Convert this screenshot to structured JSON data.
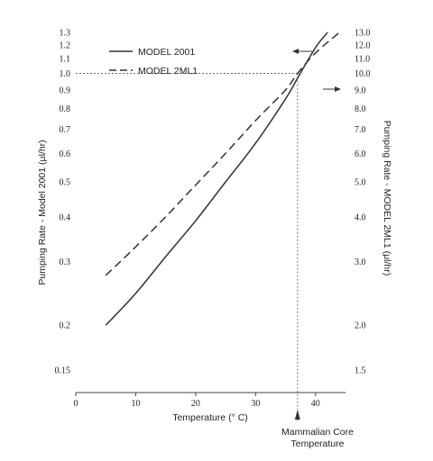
{
  "chart_data": {
    "type": "line",
    "xlabel": "Temperature (° C)",
    "ylabel_left": "Pumping Rate - Model 2001 (μl/hr)",
    "ylabel_right": "Pumping Rate - MODEL 2ML1 (μl/hr)",
    "xlim": [
      0,
      45
    ],
    "ylim_left": [
      0.13,
      1.3
    ],
    "ylim_right": [
      1.3,
      13.0
    ],
    "y_scale": "log",
    "grid": false,
    "legend": "top-left",
    "x_ticks": [
      "0",
      "10",
      "20",
      "30",
      "40"
    ],
    "x_tick_values": [
      0,
      10,
      20,
      30,
      40
    ],
    "left_ticks": [
      "1.3",
      "1.2",
      "1.1",
      "1.0",
      "0.9",
      "0.8",
      "0.7",
      "0.6",
      "0.5",
      "0.4",
      "0.3",
      "0.2",
      "0.15"
    ],
    "left_tick_values": [
      1.3,
      1.2,
      1.1,
      1.0,
      0.9,
      0.8,
      0.7,
      0.6,
      0.5,
      0.4,
      0.3,
      0.2,
      0.15
    ],
    "right_ticks": [
      "13.0",
      "12.0",
      "11.0",
      "10.0",
      "9.0",
      "8.0",
      "7.0",
      "6.0",
      "5.0",
      "4.0",
      "3.0",
      "2.0",
      "1.5"
    ],
    "right_tick_values": [
      13.0,
      12.0,
      11.0,
      10.0,
      9.0,
      8.0,
      7.0,
      6.0,
      5.0,
      4.0,
      3.0,
      2.0,
      1.5
    ],
    "series": [
      {
        "name": "MODEL 2001",
        "style": "solid",
        "x": [
          5,
          10,
          15,
          20,
          25,
          30,
          35,
          37,
          40,
          42
        ],
        "y": [
          0.2,
          0.245,
          0.31,
          0.39,
          0.5,
          0.64,
          0.85,
          0.97,
          1.18,
          1.3
        ]
      },
      {
        "name": "MODEL 2ML1",
        "style": "dashed",
        "x": [
          5,
          10,
          15,
          20,
          25,
          30,
          35,
          37,
          40,
          44
        ],
        "y": [
          2.75,
          3.3,
          4.0,
          4.9,
          6.0,
          7.4,
          9.0,
          10.0,
          11.4,
          13.0
        ]
      }
    ],
    "reference": {
      "x": 37,
      "y_left": 1.0,
      "y_right": 10.0
    },
    "annotation": {
      "line1": "Mammalian Core",
      "line2": "Temperature"
    }
  }
}
